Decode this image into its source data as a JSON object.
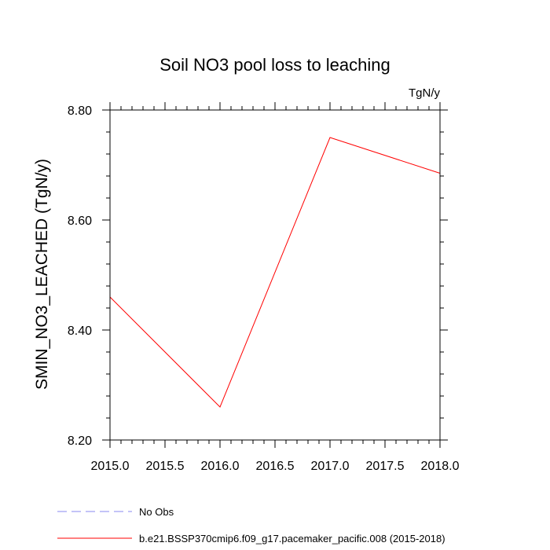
{
  "chart_data": {
    "type": "line",
    "title": "Soil NO3 pool loss to leaching",
    "units_label": "TgN/y",
    "ylabel": "SMIN_NO3_LEACHED  (TgN/y)",
    "xlabel": "",
    "xlim": [
      2015.0,
      2018.0
    ],
    "ylim": [
      8.2,
      8.8
    ],
    "x_ticks": [
      2015.0,
      2015.5,
      2016.0,
      2016.5,
      2017.0,
      2017.5,
      2018.0
    ],
    "x_tick_labels": [
      "2015.0",
      "2015.5",
      "2016.0",
      "2016.5",
      "2017.0",
      "2017.5",
      "2018.0"
    ],
    "y_ticks": [
      8.2,
      8.4,
      8.6,
      8.8
    ],
    "y_tick_labels": [
      "8.20",
      "8.40",
      "8.60",
      "8.80"
    ],
    "x_minor_step": 0.1,
    "y_minor_step": 0.04,
    "grid": false,
    "legend_position": "bottom",
    "series": [
      {
        "name": "No Obs",
        "color": "#8a8af0",
        "dash": "dashed",
        "x": [],
        "y": []
      },
      {
        "name": "b.e21.BSSP370cmip6.f09_g17.pacemaker_pacific.008 (2015-2018)",
        "color": "#ff0000",
        "dash": "solid",
        "x": [
          2015.0,
          2016.0,
          2017.0,
          2018.0
        ],
        "y": [
          8.46,
          8.26,
          8.75,
          8.685
        ]
      }
    ]
  }
}
